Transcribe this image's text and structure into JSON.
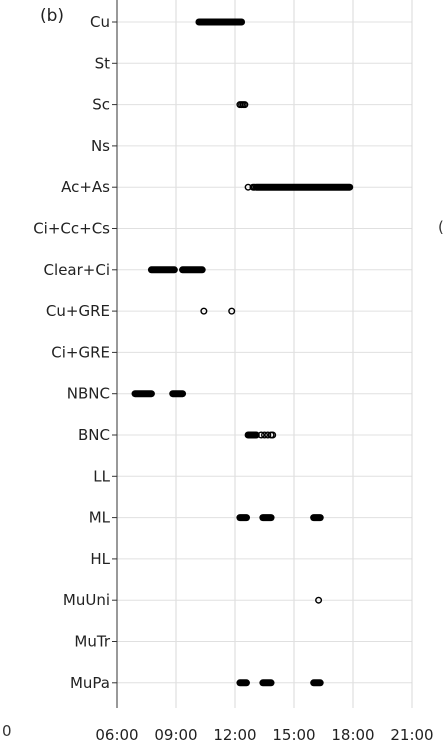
{
  "panel_label": "(b)",
  "stray_text": {
    "bottom_left": "0",
    "right_edge": "("
  },
  "chart_data": {
    "type": "scatter",
    "categories": [
      "Cu",
      "St",
      "Sc",
      "Ns",
      "Ac+As",
      "Ci+Cc+Cs",
      "Clear+Ci",
      "Cu+GRE",
      "Ci+GRE",
      "NBNC",
      "BNC",
      "LL",
      "ML",
      "HL",
      "MuUni",
      "MuTr",
      "MuPa"
    ],
    "xticks": [
      "06:00",
      "09:00",
      "12:00",
      "15:00",
      "18:00",
      "21:00"
    ],
    "xlim": [
      "06:00",
      "21:00"
    ],
    "grid": true,
    "title": "",
    "xlabel": "",
    "ylabel": "",
    "series": [
      {
        "category": "Cu",
        "segments": [
          [
            "10:10",
            "12:20"
          ]
        ],
        "points": []
      },
      {
        "category": "St",
        "segments": [],
        "points": []
      },
      {
        "category": "Sc",
        "segments": [],
        "points": [
          "12:15",
          "12:20",
          "12:25",
          "12:30"
        ]
      },
      {
        "category": "Ns",
        "segments": [],
        "points": []
      },
      {
        "category": "Ac+As",
        "segments": [
          [
            "13:05",
            "17:50"
          ]
        ],
        "points": [
          "12:40",
          "12:55",
          "13:00"
        ]
      },
      {
        "category": "Ci+Cc+Cs",
        "segments": [],
        "points": []
      },
      {
        "category": "Clear+Ci",
        "segments": [
          [
            "07:45",
            "08:55"
          ],
          [
            "09:20",
            "10:20"
          ]
        ],
        "points": []
      },
      {
        "category": "Cu+GRE",
        "segments": [],
        "points": [
          "10:25",
          "11:50"
        ]
      },
      {
        "category": "Ci+GRE",
        "segments": [],
        "points": []
      },
      {
        "category": "NBNC",
        "segments": [
          [
            "06:55",
            "07:45"
          ],
          [
            "08:50",
            "09:20"
          ]
        ],
        "points": []
      },
      {
        "category": "BNC",
        "segments": [
          [
            "12:40",
            "13:05"
          ]
        ],
        "points": [
          "13:20",
          "13:30",
          "13:40",
          "13:50",
          "13:55"
        ]
      },
      {
        "category": "LL",
        "segments": [],
        "points": []
      },
      {
        "category": "ML",
        "segments": [
          [
            "12:15",
            "12:35"
          ],
          [
            "13:25",
            "13:50"
          ],
          [
            "16:00",
            "16:20"
          ]
        ],
        "points": []
      },
      {
        "category": "HL",
        "segments": [],
        "points": []
      },
      {
        "category": "MuUni",
        "segments": [],
        "points": [
          "16:15"
        ]
      },
      {
        "category": "MuTr",
        "segments": [],
        "points": []
      },
      {
        "category": "MuPa",
        "segments": [
          [
            "12:15",
            "12:35"
          ],
          [
            "13:25",
            "13:50"
          ],
          [
            "16:00",
            "16:20"
          ]
        ],
        "points": []
      }
    ]
  }
}
